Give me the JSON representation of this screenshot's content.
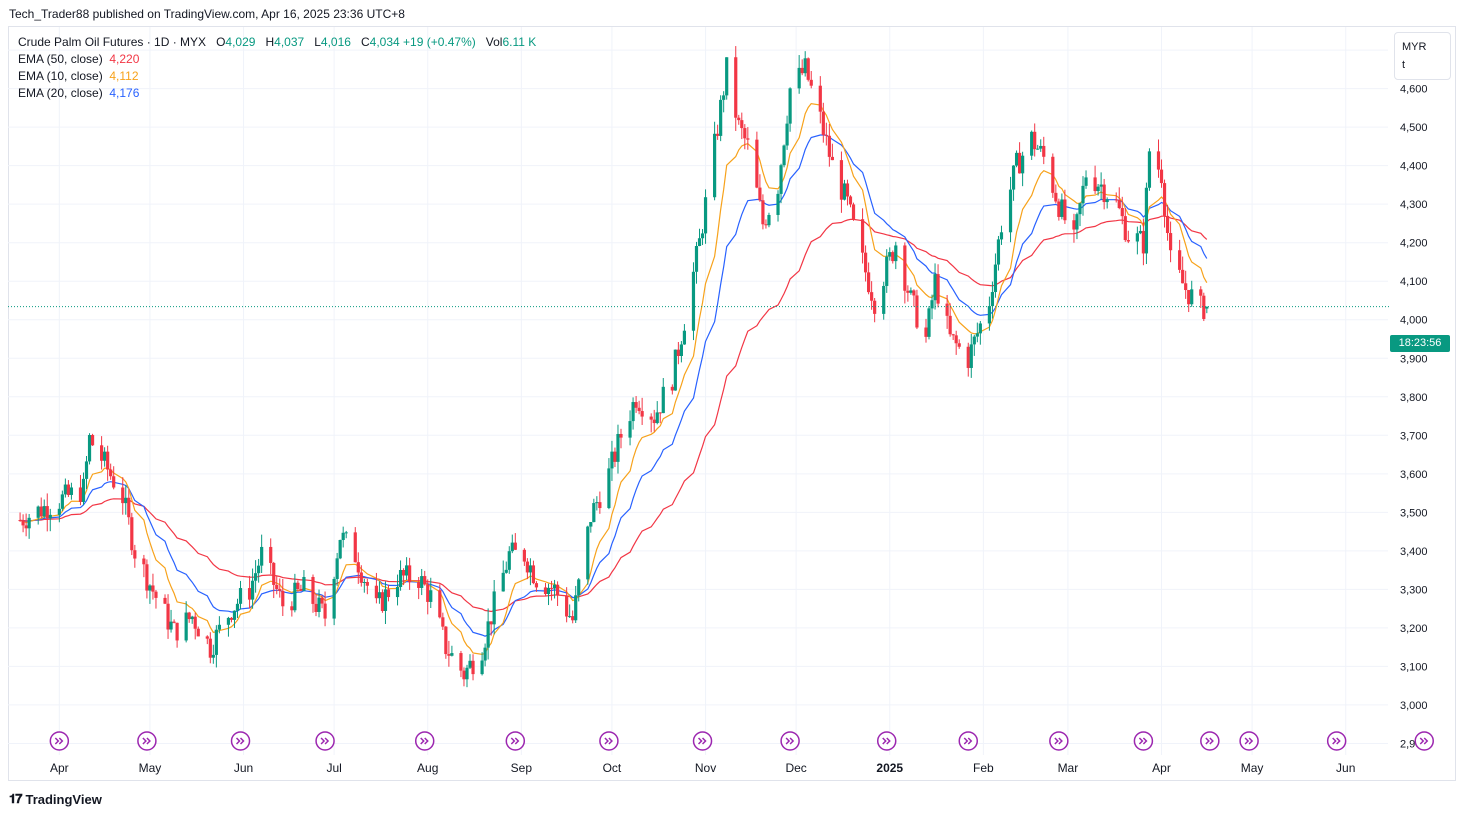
{
  "publisher_line": "Tech_Trader88 published on TradingView.com, Apr 16, 2025 23:36 UTC+8",
  "brand": "TradingView",
  "currency": {
    "code": "MYR",
    "unit": "t"
  },
  "countdown": "18:23:56",
  "legend": {
    "symbol": "Crude Palm Oil Futures · 1D · MYX",
    "o_label": "O",
    "o": "4,029",
    "h_label": "H",
    "h": "4,037",
    "l_label": "L",
    "l": "4,016",
    "c_label": "C",
    "c": "4,034",
    "change": "+19 (+0.47%)",
    "vol_label": "Vol",
    "vol": "6.11 K",
    "ema50_label": "EMA (50, close)",
    "ema50": "4,220",
    "ema10_label": "EMA (10, close)",
    "ema10": "4,112",
    "ema20_label": "EMA (20, close)",
    "ema20": "4,176"
  },
  "colors": {
    "up": "#089981",
    "down": "#f23645",
    "ema50": "#f23645",
    "ema10": "#f7a21b",
    "ema20": "#2962ff",
    "event": "#9c27b0",
    "grid": "#f0f3fa"
  },
  "chart_data": {
    "type": "candlestick",
    "ylim": [
      2870,
      4760
    ],
    "y_ticks": [
      2900,
      3000,
      3100,
      3200,
      3300,
      3400,
      3500,
      3600,
      3700,
      3800,
      3900,
      4000,
      4100,
      4200,
      4300,
      4400,
      4500,
      4600,
      4700
    ],
    "y_tick_labels": [
      "2,900",
      "3,000",
      "3,100",
      "3,200",
      "3,300",
      "3,400",
      "3,500",
      "3,600",
      "3,700",
      "3,800",
      "3,900",
      "4,000",
      "4,100",
      "4,200",
      "4,300",
      "4,400",
      "4,500",
      "4,600",
      "4,700"
    ],
    "x_ticks": [
      {
        "date": "2024-04-01",
        "label": "Apr"
      },
      {
        "date": "2024-05-01",
        "label": "May"
      },
      {
        "date": "2024-06-01",
        "label": "Jun"
      },
      {
        "date": "2024-07-01",
        "label": "Jul"
      },
      {
        "date": "2024-08-01",
        "label": "Aug"
      },
      {
        "date": "2024-09-01",
        "label": "Sep"
      },
      {
        "date": "2024-10-01",
        "label": "Oct"
      },
      {
        "date": "2024-11-01",
        "label": "Nov"
      },
      {
        "date": "2024-12-01",
        "label": "Dec"
      },
      {
        "date": "2025-01-01",
        "label": "2025",
        "bold": true
      },
      {
        "date": "2025-02-01",
        "label": "Feb"
      },
      {
        "date": "2025-03-01",
        "label": "Mar"
      },
      {
        "date": "2025-04-01",
        "label": "Apr"
      },
      {
        "date": "2025-05-01",
        "label": "May"
      },
      {
        "date": "2025-06-01",
        "label": "Jun"
      }
    ],
    "last_price": 4034,
    "price_path": [
      [
        "2024-03-19",
        3480
      ],
      [
        "2024-03-29",
        3520
      ],
      [
        "2024-04-09",
        3560
      ],
      [
        "2024-04-11",
        3690
      ],
      [
        "2024-04-15",
        3640
      ],
      [
        "2024-04-22",
        3540
      ],
      [
        "2024-04-26",
        3400
      ],
      [
        "2024-05-03",
        3280
      ],
      [
        "2024-05-09",
        3190
      ],
      [
        "2024-05-15",
        3230
      ],
      [
        "2024-05-21",
        3150
      ],
      [
        "2024-05-28",
        3250
      ],
      [
        "2024-06-03",
        3300
      ],
      [
        "2024-06-07",
        3390
      ],
      [
        "2024-06-14",
        3260
      ],
      [
        "2024-06-21",
        3300
      ],
      [
        "2024-06-28",
        3230
      ],
      [
        "2024-07-03",
        3440
      ],
      [
        "2024-07-08",
        3390
      ],
      [
        "2024-07-15",
        3250
      ],
      [
        "2024-07-22",
        3330
      ],
      [
        "2024-07-29",
        3330
      ],
      [
        "2024-08-02",
        3280
      ],
      [
        "2024-08-07",
        3150
      ],
      [
        "2024-08-13",
        3080
      ],
      [
        "2024-08-19",
        3150
      ],
      [
        "2024-08-23",
        3260
      ],
      [
        "2024-08-28",
        3390
      ],
      [
        "2024-09-02",
        3390
      ],
      [
        "2024-09-06",
        3330
      ],
      [
        "2024-09-12",
        3300
      ],
      [
        "2024-09-18",
        3220
      ],
      [
        "2024-09-24",
        3490
      ],
      [
        "2024-09-30",
        3600
      ],
      [
        "2024-10-04",
        3700
      ],
      [
        "2024-10-09",
        3800
      ],
      [
        "2024-10-15",
        3750
      ],
      [
        "2024-10-21",
        3850
      ],
      [
        "2024-10-25",
        4000
      ],
      [
        "2024-10-30",
        4200
      ],
      [
        "2024-11-04",
        4450
      ],
      [
        "2024-11-08",
        4650
      ],
      [
        "2024-11-12",
        4500
      ],
      [
        "2024-11-15",
        4450
      ],
      [
        "2024-11-20",
        4250
      ],
      [
        "2024-11-25",
        4350
      ],
      [
        "2024-11-29",
        4600
      ],
      [
        "2024-12-04",
        4650
      ],
      [
        "2024-12-09",
        4520
      ],
      [
        "2024-12-13",
        4400
      ],
      [
        "2024-12-18",
        4300
      ],
      [
        "2024-12-23",
        4150
      ],
      [
        "2024-12-27",
        4050
      ],
      [
        "2025-01-03",
        4200
      ],
      [
        "2025-01-08",
        4050
      ],
      [
        "2025-01-13",
        3950
      ],
      [
        "2025-01-16",
        4100
      ],
      [
        "2025-01-21",
        3950
      ],
      [
        "2025-01-27",
        3900
      ],
      [
        "2025-02-03",
        4050
      ],
      [
        "2025-02-07",
        4250
      ],
      [
        "2025-02-12",
        4400
      ],
      [
        "2025-02-17",
        4470
      ],
      [
        "2025-02-21",
        4420
      ],
      [
        "2025-02-26",
        4300
      ],
      [
        "2025-03-03",
        4200
      ],
      [
        "2025-03-07",
        4380
      ],
      [
        "2025-03-12",
        4350
      ],
      [
        "2025-03-17",
        4300
      ],
      [
        "2025-03-21",
        4220
      ],
      [
        "2025-03-26",
        4200
      ],
      [
        "2025-03-28",
        4440
      ],
      [
        "2025-04-01",
        4380
      ],
      [
        "2025-04-04",
        4150
      ],
      [
        "2025-04-09",
        4080
      ],
      [
        "2025-04-14",
        4030
      ],
      [
        "2025-04-16",
        4034
      ]
    ],
    "ema_end": {
      "ema50": 4220,
      "ema10": 4112,
      "ema20": 4176
    },
    "event_markers": [
      "2024-04-01",
      "2024-04-30",
      "2024-05-31",
      "2024-06-28",
      "2024-07-31",
      "2024-08-30",
      "2024-09-30",
      "2024-10-31",
      "2024-11-29",
      "2024-12-31",
      "2025-01-27",
      "2025-02-26",
      "2025-03-26",
      "2025-04-17",
      "2025-04-30",
      "2025-05-29",
      "2025-06-27"
    ]
  }
}
